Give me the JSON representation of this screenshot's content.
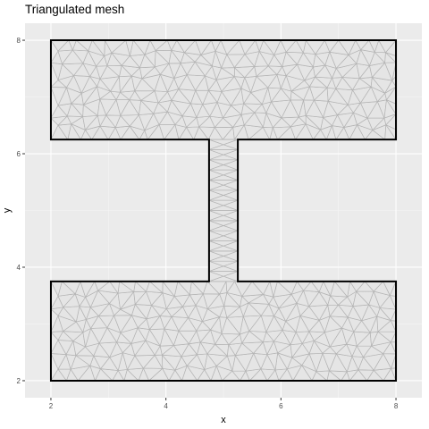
{
  "chart_data": {
    "type": "mesh",
    "title": "Triangulated mesh",
    "xlabel": "x",
    "ylabel": "y",
    "xlim": [
      1.55,
      8.45
    ],
    "ylim": [
      1.7,
      8.3
    ],
    "xticks": [
      2,
      4,
      6,
      8
    ],
    "yticks": [
      2,
      4,
      6,
      8
    ],
    "grid": true,
    "boundary": [
      [
        2,
        2
      ],
      [
        8,
        2
      ],
      [
        8,
        3.75
      ],
      [
        5.25,
        3.75
      ],
      [
        5.25,
        6.25
      ],
      [
        8,
        6.25
      ],
      [
        8,
        8
      ],
      [
        2,
        8
      ],
      [
        2,
        6.25
      ],
      [
        4.75,
        6.25
      ],
      [
        4.75,
        3.75
      ],
      [
        2,
        3.75
      ]
    ],
    "colors": {
      "panel": "#ebebeb",
      "grid_major": "#ffffff",
      "grid_minor": "#f5f5f5",
      "mesh_fill": "#e5e5e5",
      "mesh_edge": "#b4b4b4",
      "boundary": "#000000"
    }
  }
}
